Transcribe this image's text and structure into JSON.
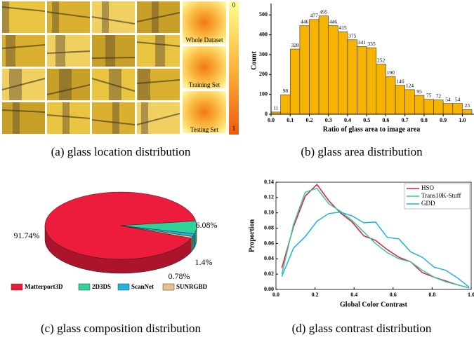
{
  "chart_data": [
    {
      "type": "image-grid",
      "caption": "(a) glass location distribution",
      "labels": [
        "Whole Dataset",
        "Training Set",
        "Testing Set"
      ],
      "colorbar_ticks": [
        0,
        1
      ]
    },
    {
      "type": "histogram",
      "caption": "(b) glass area distribution",
      "xlabel": "Ratio of glass area to image area",
      "ylabel": "Count",
      "bins": [
        0,
        0.05,
        0.1,
        0.15,
        0.2,
        0.25,
        0.3,
        0.35,
        0.4,
        0.45,
        0.5,
        0.55,
        0.6,
        0.65,
        0.7,
        0.75,
        0.8,
        0.85,
        0.9,
        0.95,
        1.0,
        1.05
      ],
      "values": [
        11,
        98,
        328,
        446,
        477,
        495,
        446,
        415,
        375,
        341,
        335,
        252,
        190,
        146,
        124,
        95,
        75,
        72,
        54,
        54,
        23
      ],
      "color": "#f6b400",
      "xlim": [
        0,
        1.05
      ],
      "ylim": [
        0,
        540
      ],
      "xticks": [
        {
          "value": 0,
          "label": "0.0"
        },
        0.1,
        0.2,
        0.3,
        0.4,
        0.5,
        0.6,
        0.7,
        0.8,
        0.9,
        {
          "value": 1,
          "label": "1.0"
        }
      ],
      "yticks": [
        0,
        100,
        200,
        300,
        400,
        500
      ]
    },
    {
      "type": "pie",
      "caption": "(c) glass composition distribution",
      "categories": [
        "Matterport3D",
        "2D3DS",
        "ScanNet",
        "SUNRGBD"
      ],
      "values": [
        91.74,
        6.08,
        1.4,
        0.78
      ],
      "value_labels": [
        "91.74%",
        "6.08%",
        "1.4%",
        "0.78%"
      ],
      "colors": [
        "#ee1c3c",
        "#2fd39a",
        "#1db5e0",
        "#e8c187"
      ]
    },
    {
      "type": "line",
      "caption": "(d) glass contrast distribution",
      "xlabel": "Global Color Contrast",
      "ylabel": "Proportion",
      "x": [
        0.03,
        0.09,
        0.15,
        0.21,
        0.27,
        0.33,
        0.39,
        0.45,
        0.51,
        0.57,
        0.63,
        0.69,
        0.75,
        0.81,
        0.87,
        0.93,
        0.99
      ],
      "series": [
        {
          "name": "HSO",
          "color": "#e8173c",
          "values": [
            0.028,
            0.082,
            0.122,
            0.137,
            0.116,
            0.1,
            0.088,
            0.07,
            0.064,
            0.052,
            0.042,
            0.036,
            0.022,
            0.016,
            0.011,
            0.006,
            0.002
          ]
        },
        {
          "name": "Trans10K-Stuff",
          "color": "#2ecc9a",
          "values": [
            0.02,
            0.085,
            0.127,
            0.132,
            0.112,
            0.102,
            0.09,
            0.075,
            0.06,
            0.048,
            0.04,
            0.036,
            0.025,
            0.016,
            0.01,
            0.006,
            0.002
          ]
        },
        {
          "name": "GDD",
          "color": "#1fb4dc",
          "values": [
            0.017,
            0.054,
            0.069,
            0.089,
            0.099,
            0.101,
            0.096,
            0.087,
            0.088,
            0.068,
            0.066,
            0.049,
            0.042,
            0.029,
            0.025,
            0.015,
            0.003
          ]
        }
      ],
      "xlim": [
        0,
        1
      ],
      "ylim": [
        0,
        0.14
      ],
      "xticks": [
        {
          "value": 0,
          "label": "0.0"
        },
        0.2,
        0.4,
        0.6,
        0.8,
        {
          "value": 1,
          "label": "1.0"
        }
      ],
      "yticks": [
        {
          "value": 0,
          "label": "0.00"
        },
        0.02,
        0.04,
        0.06,
        0.08,
        {
          "value": 0.1,
          "label": "0.10"
        },
        0.12,
        0.14
      ],
      "legend": "upper right"
    }
  ]
}
